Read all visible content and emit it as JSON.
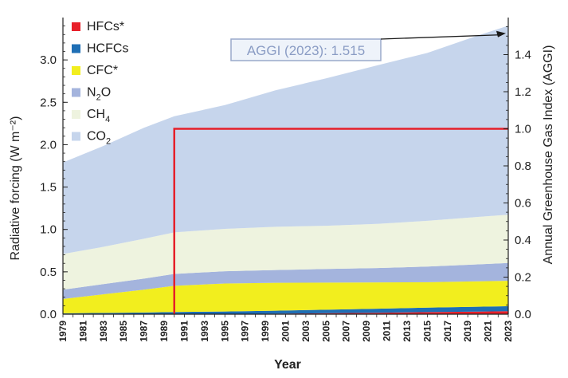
{
  "chart_data": {
    "type": "area",
    "xlabel": "Year",
    "ylabel_left": "Radiative forcing (W m⁻²)",
    "ylabel_right": "Annual Greenhouse Gas Index (AGGI)",
    "ylim_left": [
      0,
      3.5
    ],
    "ylim_right": [
      0,
      1.6
    ],
    "yticks_left": [
      "0.0",
      "0.5",
      "1.0",
      "1.5",
      "2.0",
      "2.5",
      "3.0"
    ],
    "yticks_right": [
      "0.0",
      "0.2",
      "0.4",
      "0.6",
      "0.8",
      "1.0",
      "1.2",
      "1.4"
    ],
    "xlim": [
      1979,
      2023
    ],
    "x_tick_labels": [
      "1979",
      "1981",
      "1983",
      "1985",
      "1987",
      "1989",
      "1991",
      "1993",
      "1995",
      "1997",
      "1999",
      "2001",
      "2003",
      "2005",
      "2007",
      "2009",
      "2011",
      "2013",
      "2015",
      "2017",
      "2019",
      "2021",
      "2023"
    ],
    "legend": [
      {
        "key": "HFCs",
        "label_main": "HFCs*",
        "label_sub": "",
        "label_after": "",
        "color": "#e8202a"
      },
      {
        "key": "HCFCs",
        "label_main": "HCFCs",
        "label_sub": "",
        "label_after": "",
        "color": "#1f6fb5"
      },
      {
        "key": "CFC",
        "label_main": "CFC*",
        "label_sub": "",
        "label_after": "",
        "color": "#f2ee1e"
      },
      {
        "key": "N2O",
        "label_main": "N",
        "label_sub": "2",
        "label_after": "O",
        "color": "#a4b4dd"
      },
      {
        "key": "CH4",
        "label_main": "CH",
        "label_sub": "4",
        "label_after": "",
        "color": "#eef3df"
      },
      {
        "key": "CO2",
        "label_main": "CO",
        "label_sub": "2",
        "label_after": "",
        "color": "#c6d5ec"
      }
    ],
    "x": [
      1979,
      1983,
      1987,
      1990,
      1995,
      2000,
      2005,
      2010,
      2015,
      2020,
      2023
    ],
    "stack_order": [
      "HFCs",
      "HCFCs",
      "CFC",
      "N2O",
      "CH4",
      "CO2"
    ],
    "series": [
      {
        "name": "HFCs*",
        "key": "HFCs",
        "values": [
          0.0,
          0.0,
          0.0,
          0.0,
          0.002,
          0.006,
          0.011,
          0.017,
          0.024,
          0.031,
          0.036
        ]
      },
      {
        "name": "HCFCs",
        "key": "HCFCs",
        "values": [
          0.01,
          0.015,
          0.02,
          0.025,
          0.03,
          0.035,
          0.042,
          0.048,
          0.053,
          0.057,
          0.058
        ]
      },
      {
        "name": "CFC*",
        "key": "CFC",
        "values": [
          0.17,
          0.22,
          0.27,
          0.31,
          0.33,
          0.33,
          0.32,
          0.31,
          0.3,
          0.3,
          0.3
        ]
      },
      {
        "name": "N2O",
        "key": "N2O",
        "values": [
          0.11,
          0.12,
          0.13,
          0.14,
          0.145,
          0.15,
          0.16,
          0.17,
          0.185,
          0.2,
          0.21
        ]
      },
      {
        "name": "CH4",
        "key": "CH4",
        "values": [
          0.42,
          0.44,
          0.47,
          0.49,
          0.5,
          0.51,
          0.51,
          0.52,
          0.54,
          0.56,
          0.57
        ]
      },
      {
        "name": "CO2",
        "key": "CO2",
        "values": [
          1.08,
          1.19,
          1.31,
          1.37,
          1.46,
          1.61,
          1.74,
          1.87,
          1.98,
          2.14,
          2.23
        ]
      }
    ],
    "aggi_line": {
      "color": "#e5202a",
      "start_year": 1990,
      "value": 1.0
    },
    "annotation": {
      "text": "AGGI (2023): 1.515",
      "year": 2023,
      "aggi": 1.515
    }
  }
}
